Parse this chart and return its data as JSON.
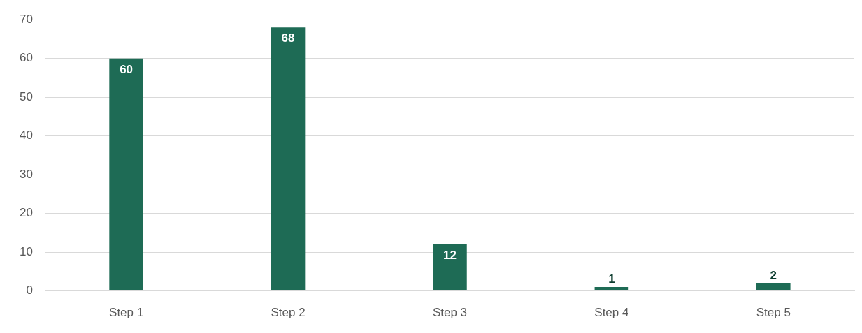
{
  "chart_data": {
    "type": "bar",
    "categories": [
      "Step 1",
      "Step 2",
      "Step 3",
      "Step 4",
      "Step 5"
    ],
    "values": [
      60,
      68,
      12,
      1,
      2
    ],
    "color": "#1e6b55",
    "ylim": [
      0,
      70
    ],
    "yticks": [
      0,
      10,
      20,
      30,
      40,
      50,
      60,
      70
    ],
    "grid": "y",
    "data_labels": true,
    "legend": false
  }
}
